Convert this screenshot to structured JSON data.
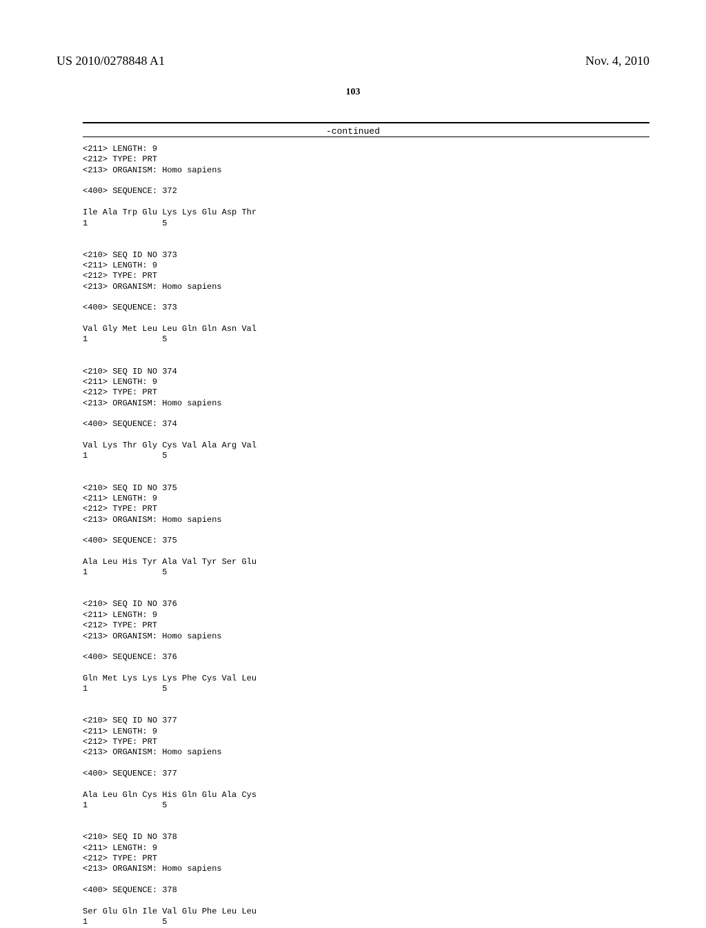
{
  "header": {
    "pub_number": "US 2010/0278848 A1",
    "pub_date": "Nov. 4, 2010"
  },
  "page_number": "103",
  "continued_label": "-continued",
  "sequences": [
    {
      "header_lines": [
        "<211> LENGTH: 9",
        "<212> TYPE: PRT",
        "<213> ORGANISM: Homo sapiens"
      ],
      "seq_line": "<400> SEQUENCE: 372",
      "residues": "Ile Ala Trp Glu Lys Lys Glu Asp Thr",
      "numbers": "1               5"
    },
    {
      "header_lines": [
        "<210> SEQ ID NO 373",
        "<211> LENGTH: 9",
        "<212> TYPE: PRT",
        "<213> ORGANISM: Homo sapiens"
      ],
      "seq_line": "<400> SEQUENCE: 373",
      "residues": "Val Gly Met Leu Leu Gln Gln Asn Val",
      "numbers": "1               5"
    },
    {
      "header_lines": [
        "<210> SEQ ID NO 374",
        "<211> LENGTH: 9",
        "<212> TYPE: PRT",
        "<213> ORGANISM: Homo sapiens"
      ],
      "seq_line": "<400> SEQUENCE: 374",
      "residues": "Val Lys Thr Gly Cys Val Ala Arg Val",
      "numbers": "1               5"
    },
    {
      "header_lines": [
        "<210> SEQ ID NO 375",
        "<211> LENGTH: 9",
        "<212> TYPE: PRT",
        "<213> ORGANISM: Homo sapiens"
      ],
      "seq_line": "<400> SEQUENCE: 375",
      "residues": "Ala Leu His Tyr Ala Val Tyr Ser Glu",
      "numbers": "1               5"
    },
    {
      "header_lines": [
        "<210> SEQ ID NO 376",
        "<211> LENGTH: 9",
        "<212> TYPE: PRT",
        "<213> ORGANISM: Homo sapiens"
      ],
      "seq_line": "<400> SEQUENCE: 376",
      "residues": "Gln Met Lys Lys Lys Phe Cys Val Leu",
      "numbers": "1               5"
    },
    {
      "header_lines": [
        "<210> SEQ ID NO 377",
        "<211> LENGTH: 9",
        "<212> TYPE: PRT",
        "<213> ORGANISM: Homo sapiens"
      ],
      "seq_line": "<400> SEQUENCE: 377",
      "residues": "Ala Leu Gln Cys His Gln Glu Ala Cys",
      "numbers": "1               5"
    },
    {
      "header_lines": [
        "<210> SEQ ID NO 378",
        "<211> LENGTH: 9",
        "<212> TYPE: PRT",
        "<213> ORGANISM: Homo sapiens"
      ],
      "seq_line": "<400> SEQUENCE: 378",
      "residues": "Ser Glu Gln Ile Val Glu Phe Leu Leu",
      "numbers": "1               5"
    }
  ]
}
